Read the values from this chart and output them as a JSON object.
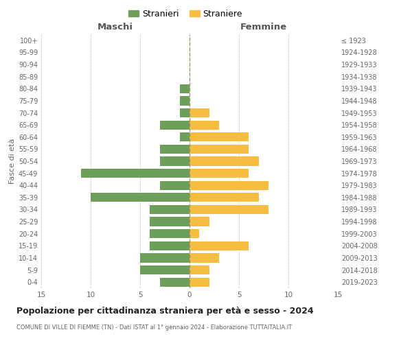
{
  "age_groups": [
    "0-4",
    "5-9",
    "10-14",
    "15-19",
    "20-24",
    "25-29",
    "30-34",
    "35-39",
    "40-44",
    "45-49",
    "50-54",
    "55-59",
    "60-64",
    "65-69",
    "70-74",
    "75-79",
    "80-84",
    "85-89",
    "90-94",
    "95-99",
    "100+"
  ],
  "birth_years": [
    "2019-2023",
    "2014-2018",
    "2009-2013",
    "2004-2008",
    "1999-2003",
    "1994-1998",
    "1989-1993",
    "1984-1988",
    "1979-1983",
    "1974-1978",
    "1969-1973",
    "1964-1968",
    "1959-1963",
    "1954-1958",
    "1949-1953",
    "1944-1948",
    "1939-1943",
    "1934-1938",
    "1929-1933",
    "1924-1928",
    "≤ 1923"
  ],
  "maschi": [
    3,
    5,
    5,
    4,
    4,
    4,
    4,
    10,
    3,
    11,
    3,
    3,
    1,
    3,
    1,
    1,
    1,
    0,
    0,
    0,
    0
  ],
  "femmine": [
    2,
    2,
    3,
    6,
    1,
    2,
    8,
    7,
    8,
    6,
    7,
    6,
    6,
    3,
    2,
    0,
    0,
    0,
    0,
    0,
    0
  ],
  "maschi_color": "#6d9e5a",
  "femmine_color": "#f5be41",
  "title": "Popolazione per cittadinanza straniera per età e sesso - 2024",
  "subtitle": "COMUNE DI VILLE DI FIEMME (TN) - Dati ISTAT al 1° gennaio 2024 - Elaborazione TUTTAITALIA.IT",
  "xlabel_left": "Maschi",
  "xlabel_right": "Femmine",
  "ylabel_left": "Fasce di età",
  "legend_maschi": "Stranieri",
  "legend_femmine": "Straniere",
  "xlim": 15,
  "bg_color": "#ffffff",
  "grid_color": "#cccccc"
}
